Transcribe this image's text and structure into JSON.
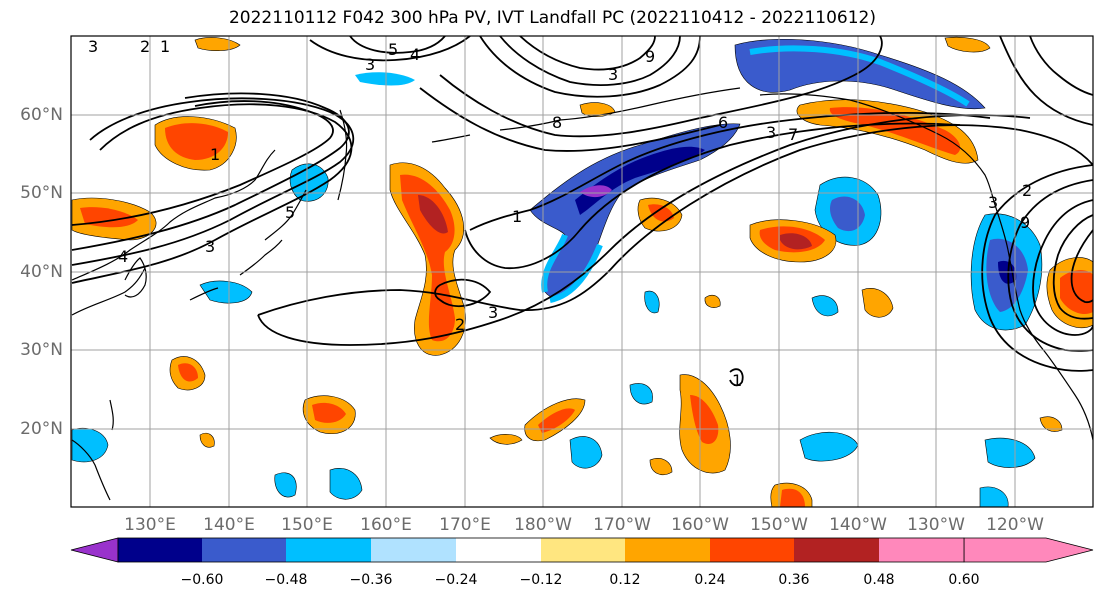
{
  "title": "2022110112 F042 300 hPa PV, IVT Landfall PC (2022110412 - 2022110612)",
  "latitude_labels": [
    "60°N",
    "50°N",
    "40°N",
    "30°N",
    "20°N"
  ],
  "longitude_labels": [
    "130°E",
    "140°E",
    "150°E",
    "160°E",
    "170°E",
    "180°W",
    "170°W",
    "160°W",
    "150°W",
    "140°W",
    "130°W",
    "120°W"
  ],
  "contour_labels": [
    "3",
    "2",
    "1",
    "3",
    "5",
    "4",
    "3",
    "8",
    "9",
    "6",
    "7",
    "3",
    "1",
    "4",
    "3",
    "5",
    "1",
    "2",
    "3",
    "2",
    "3",
    "9",
    "1"
  ],
  "colorbar": {
    "tick_labels": [
      "−0.60",
      "−0.48",
      "−0.36",
      "−0.24",
      "−0.12",
      "0.12",
      "0.24",
      "0.36",
      "0.48",
      "0.60"
    ],
    "colors": [
      "#9932cc",
      "#00008b",
      "#3a5bcc",
      "#00bfff",
      "#b0e2ff",
      "#ffffff",
      "#ffe680",
      "#ffa500",
      "#ff4500",
      "#b22222",
      "#ff88bb"
    ]
  },
  "colors": {
    "coast": "#000000",
    "grid": "#a0a0a0",
    "contour": "#000000"
  }
}
